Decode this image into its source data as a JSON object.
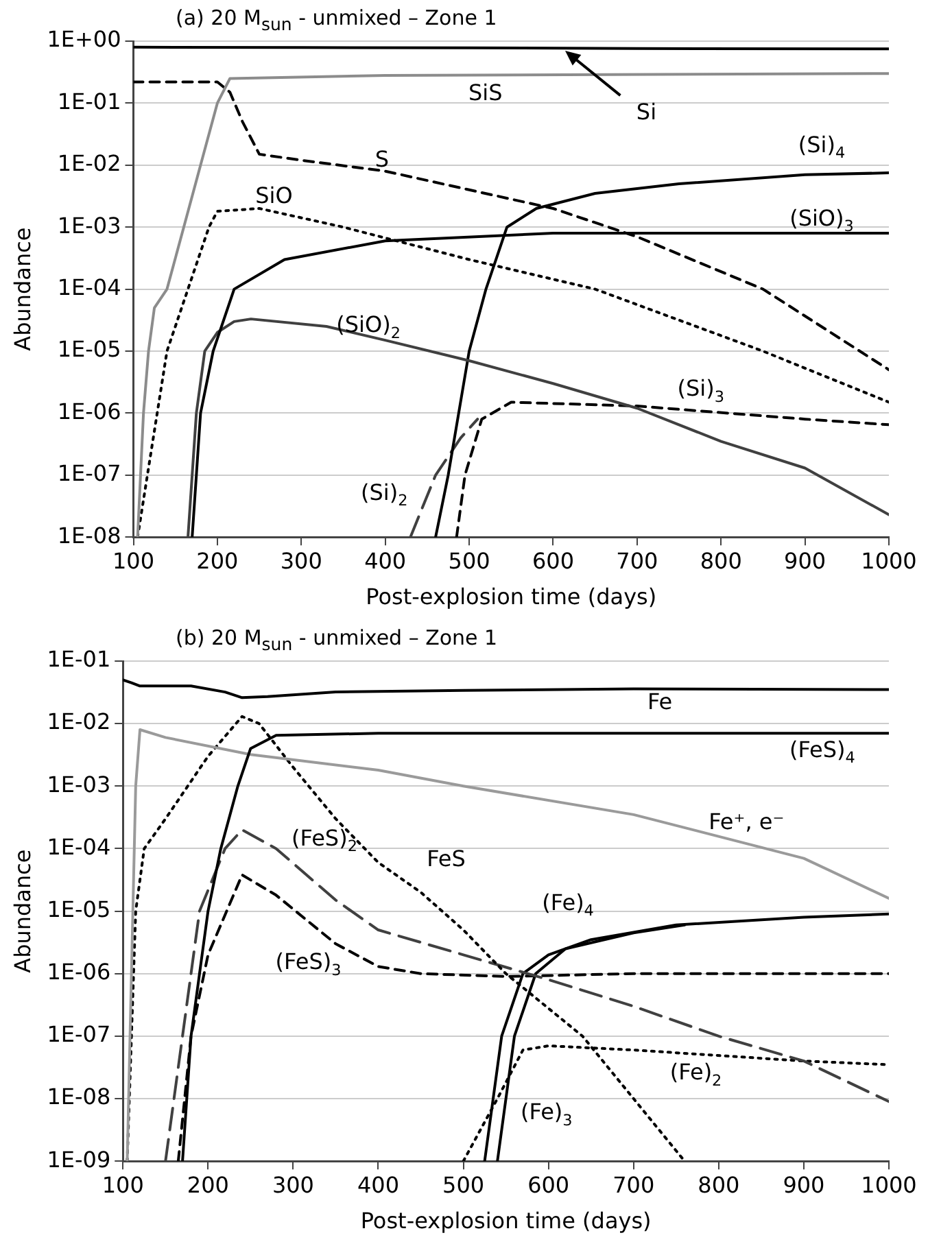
{
  "chart_data": [
    {
      "type": "line",
      "title": "(a) 20 M$_{sun}$ - unmixed – Zone 1",
      "xlabel": "Post-explosion time (days)",
      "ylabel": "Abundance",
      "log": "y",
      "grid": "y",
      "legend": false,
      "marker": "none",
      "xlim": [
        100,
        1000
      ],
      "xticks": [
        100,
        200,
        300,
        400,
        500,
        600,
        700,
        800,
        900,
        1000
      ],
      "ylim": [
        1e-08,
        1
      ],
      "yticks": [
        {
          "value": 1e-08,
          "label": "1E-08"
        },
        {
          "value": 1e-07,
          "label": "1E-07"
        },
        {
          "value": 1e-06,
          "label": "1E-06"
        },
        {
          "value": 1e-05,
          "label": "1E-05"
        },
        {
          "value": 0.0001,
          "label": "1E-04"
        },
        {
          "value": 0.001,
          "label": "1E-03"
        },
        {
          "value": 0.01,
          "label": "1E-02"
        },
        {
          "value": 0.1,
          "label": "1E-01"
        },
        {
          "value": 1,
          "label": "1E+00"
        }
      ],
      "series": [
        {
          "name": "Si",
          "color": "#000000",
          "line_style": "solid",
          "x": [
            100,
            300,
            500,
            700,
            1000
          ],
          "values": [
            0.8,
            0.79,
            0.78,
            0.76,
            0.75
          ]
        },
        {
          "name": "SiS",
          "color": "#8c8c8c",
          "line_style": "solid",
          "x": [
            105,
            112,
            118,
            125,
            140,
            160,
            180,
            200,
            215,
            400,
            1000
          ],
          "values": [
            1e-08,
            1e-06,
            1e-05,
            5e-05,
            0.0001,
            0.001,
            0.01,
            0.1,
            0.25,
            0.28,
            0.3
          ]
        },
        {
          "name": "S",
          "color": "#000000",
          "line_style": "dashed",
          "x": [
            100,
            200,
            215,
            230,
            250,
            300,
            400,
            500,
            600,
            700,
            850,
            1000
          ],
          "values": [
            0.22,
            0.22,
            0.15,
            0.05,
            0.015,
            0.012,
            0.008,
            0.004,
            0.002,
            0.0007,
            0.0001,
            5e-06
          ]
        },
        {
          "name": "SiO",
          "color": "#000000",
          "line_style": "dotted",
          "x": [
            105,
            140,
            165,
            190,
            200,
            250,
            350,
            500,
            650,
            850,
            1000
          ],
          "values": [
            1e-08,
            1e-05,
            0.0001,
            0.001,
            0.0018,
            0.002,
            0.001,
            0.0003,
            0.0001,
            1e-05,
            1.5e-06
          ]
        },
        {
          "name": "(SiO)$_{3}$",
          "color": "#000000",
          "line_style": "solid",
          "x": [
            170,
            180,
            195,
            220,
            280,
            400,
            600,
            1000
          ],
          "values": [
            1e-08,
            1e-06,
            1e-05,
            0.0001,
            0.0003,
            0.0006,
            0.0008,
            0.0008
          ]
        },
        {
          "name": "(SiO)$_{2}$",
          "color": "#404040",
          "line_style": "solid",
          "x": [
            165,
            175,
            185,
            200,
            220,
            240,
            330,
            400,
            500,
            600,
            700,
            800,
            900,
            1000
          ],
          "values": [
            1e-08,
            1e-06,
            1e-05,
            2e-05,
            3e-05,
            3.3e-05,
            2.5e-05,
            1.5e-05,
            7e-06,
            3e-06,
            1.2e-06,
            3.5e-07,
            1.3e-07,
            2.3e-08
          ]
        },
        {
          "name": "(Si)$_{4}$",
          "color": "#000000",
          "line_style": "solid",
          "x": [
            460,
            475,
            500,
            520,
            545,
            580,
            650,
            750,
            900,
            1000
          ],
          "values": [
            1e-08,
            1e-07,
            1e-05,
            0.0001,
            0.001,
            0.002,
            0.0035,
            0.005,
            0.007,
            0.0075
          ]
        },
        {
          "name": "(Si)$_{3}$",
          "color": "#000000",
          "line_style": "dashed",
          "x": [
            485,
            495,
            515,
            550,
            700,
            900,
            1000
          ],
          "values": [
            1e-08,
            1e-07,
            8e-07,
            1.5e-06,
            1.3e-06,
            8e-07,
            6.5e-07
          ]
        },
        {
          "name": "(Si)$_{2}$",
          "color": "#404040",
          "line_style": "longdash",
          "x": [
            430,
            460,
            490,
            510
          ],
          "values": [
            1e-08,
            1e-07,
            4e-07,
            8e-07
          ]
        }
      ]
    },
    {
      "type": "line",
      "title": "(b) 20 M$_{sun}$ - unmixed – Zone 1",
      "xlabel": "Post-explosion time (days)",
      "ylabel": "Abundance",
      "log": "y",
      "grid": "y",
      "legend": false,
      "marker": "none",
      "xlim": [
        100,
        1000
      ],
      "xticks": [
        100,
        200,
        300,
        400,
        500,
        600,
        700,
        800,
        900,
        1000
      ],
      "ylim": [
        1e-09,
        0.1
      ],
      "yticks": [
        {
          "value": 1e-09,
          "label": "1E-09"
        },
        {
          "value": 1e-08,
          "label": "1E-08"
        },
        {
          "value": 1e-07,
          "label": "1E-07"
        },
        {
          "value": 1e-06,
          "label": "1E-06"
        },
        {
          "value": 1e-05,
          "label": "1E-05"
        },
        {
          "value": 0.0001,
          "label": "1E-04"
        },
        {
          "value": 0.001,
          "label": "1E-03"
        },
        {
          "value": 0.01,
          "label": "1E-02"
        },
        {
          "value": 0.1,
          "label": "1E-01"
        }
      ],
      "series": [
        {
          "name": "Fe",
          "color": "#000000",
          "line_style": "solid",
          "x": [
            100,
            110,
            120,
            180,
            220,
            240,
            270,
            350,
            500,
            700,
            1000
          ],
          "values": [
            0.05,
            0.045,
            0.04,
            0.04,
            0.032,
            0.026,
            0.027,
            0.032,
            0.034,
            0.036,
            0.035
          ]
        },
        {
          "name": "(FeS)$_{4}$",
          "color": "#000000",
          "line_style": "solid",
          "x": [
            170,
            180,
            190,
            200,
            215,
            235,
            250,
            280,
            400,
            1000
          ],
          "values": [
            1e-09,
            1e-07,
            1e-06,
            1e-05,
            0.0001,
            0.001,
            0.004,
            0.0065,
            0.007,
            0.007
          ]
        },
        {
          "name": "Fe⁺, e⁻",
          "color": "#9a9a9a",
          "line_style": "solid",
          "x": [
            105,
            110,
            115,
            120,
            150,
            250,
            400,
            500,
            700,
            900,
            1000
          ],
          "values": [
            1e-09,
            1e-06,
            0.001,
            0.008,
            0.006,
            0.0032,
            0.0018,
            0.001,
            0.00035,
            7e-05,
            1.6e-05
          ]
        },
        {
          "name": "FeS",
          "color": "#000000",
          "line_style": "dotted",
          "x": [
            105,
            115,
            125,
            150,
            200,
            240,
            260,
            300,
            350,
            400,
            450,
            500,
            550,
            640,
            700,
            760
          ],
          "values": [
            1e-09,
            1e-05,
            0.0001,
            0.0003,
            0.003,
            0.013,
            0.01,
            0.002,
            0.0003,
            6e-05,
            2e-05,
            5e-06,
            1e-06,
            1e-07,
            1e-08,
            1e-09
          ]
        },
        {
          "name": "(FeS)$_{2}$",
          "color": "#404040",
          "line_style": "longdash",
          "x": [
            150,
            170,
            190,
            220,
            240,
            280,
            350,
            400,
            500,
            600,
            700,
            800,
            900,
            1000
          ],
          "values": [
            1e-09,
            1e-07,
            1e-05,
            0.0001,
            0.0002,
            0.0001,
            1.5e-05,
            5e-06,
            2e-06,
            8e-07,
            3e-07,
            1e-07,
            4e-08,
            9e-09
          ]
        },
        {
          "name": "(FeS)$_{3}$",
          "color": "#000000",
          "line_style": "dashed",
          "x": [
            165,
            180,
            200,
            240,
            280,
            350,
            400,
            450,
            550,
            700,
            1000
          ],
          "values": [
            1e-09,
            1e-07,
            2e-06,
            3.8e-05,
            1.8e-05,
            3e-06,
            1.3e-06,
            1e-06,
            9e-07,
            1e-06,
            1e-06
          ]
        },
        {
          "name": "(Fe)$_{4}$",
          "color": "#000000",
          "line_style": "solid",
          "x": [
            525,
            545,
            570,
            600,
            650,
            750,
            900,
            1000
          ],
          "values": [
            1e-09,
            1e-07,
            1e-06,
            2e-06,
            3.5e-06,
            6e-06,
            8e-06,
            9e-06
          ]
        },
        {
          "name": "(Fe)$_{3}$",
          "color": "#000000",
          "line_style": "solid",
          "x": [
            540,
            560,
            585,
            620,
            700,
            760
          ],
          "values": [
            1e-09,
            1e-07,
            1e-06,
            2.5e-06,
            4.5e-06,
            6e-06
          ]
        },
        {
          "name": "(Fe)$_{2}$",
          "color": "#000000",
          "line_style": "dotted",
          "x": [
            500,
            540,
            570,
            600,
            700,
            900,
            1000
          ],
          "values": [
            1e-09,
            1e-08,
            6e-08,
            7e-08,
            6e-08,
            4e-08,
            3.5e-08
          ]
        }
      ]
    }
  ]
}
